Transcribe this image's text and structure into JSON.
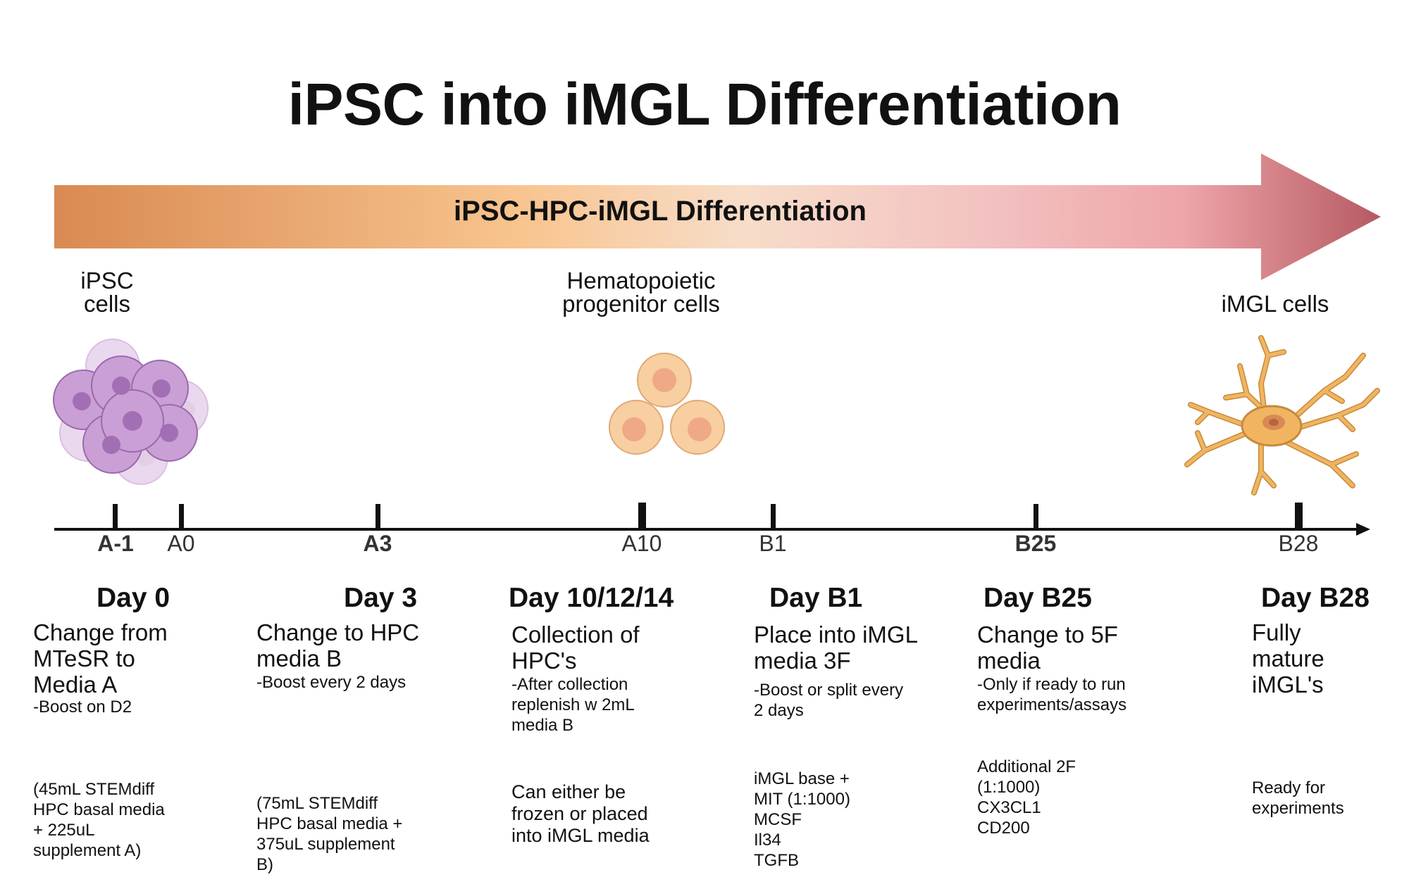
{
  "title": "iPSC into iMGL Differentiation",
  "arrow_label": "iPSC-HPC-iMGL Differentiation",
  "colors": {
    "arrow_start": "#d98a52",
    "arrow_mid": "#f8c48e",
    "arrow_pink": "#f0aab0",
    "arrow_end": "#b65a62",
    "ipsc_cell": "#c79bd3",
    "hpc_cell": "#f7cfa0",
    "imgl_cell": "#f1b561"
  },
  "cells": {
    "ipsc": "iPSC\ncells",
    "hpc": "Hematopoietic\nprogenitor cells",
    "imgl": "iMGL cells"
  },
  "ticks": [
    "A-1",
    "A0",
    "A3",
    "A10",
    "B1",
    "B25",
    "B28"
  ],
  "stages": [
    {
      "day": "Day 0",
      "heading": "Change from\nMTeSR to\nMedia A",
      "note": "-Boost on D2",
      "recipe": "(45mL STEMdiff\nHPC basal media\n+ 225uL\nsupplement A)"
    },
    {
      "day": "Day 3",
      "heading": "Change to HPC\nmedia B",
      "note": "-Boost every 2 days",
      "recipe": "(75mL STEMdiff\nHPC basal media +\n375uL supplement\nB)"
    },
    {
      "day": "Day 10/12/14",
      "heading": "Collection of\nHPC's",
      "note": "-After collection\nreplenish w 2mL\nmedia B",
      "recipe": "Can either be\nfrozen or placed\ninto iMGL media"
    },
    {
      "day": "Day B1",
      "heading": "Place into iMGL\nmedia 3F",
      "note": "-Boost or split every\n2 days",
      "recipe": "iMGL base +\nMIT (1:1000)\nMCSF\nIl34\nTGFB"
    },
    {
      "day": "Day B25",
      "heading": "Change to 5F\nmedia",
      "note": "-Only if ready to run\nexperiments/assays",
      "recipe": "Additional 2F\n(1:1000)\nCX3CL1\nCD200"
    },
    {
      "day": "Day B28",
      "heading": "Fully\nmature\niMGL's",
      "note": "",
      "recipe": "Ready for\nexperiments"
    }
  ]
}
